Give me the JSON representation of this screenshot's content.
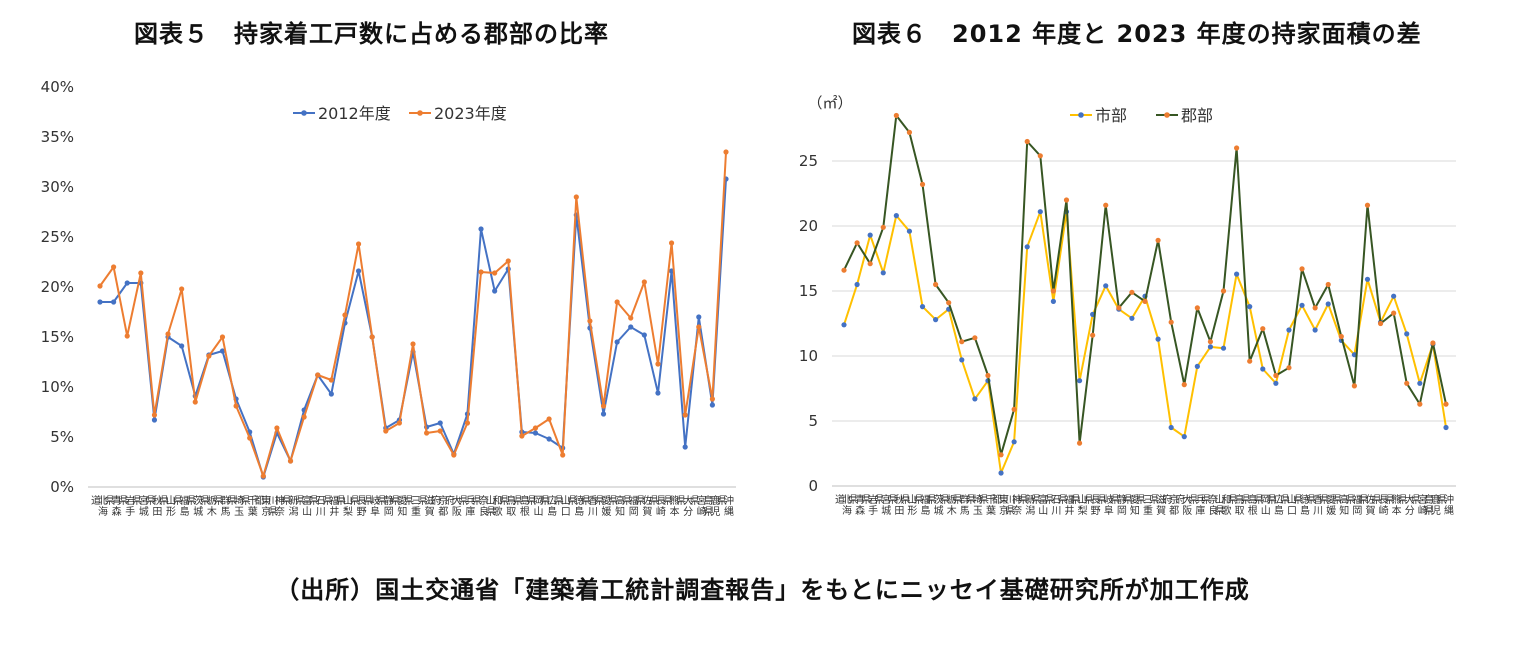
{
  "titles": {
    "left": "図表５　持家着工戸数に占める郡部の比率",
    "right": "図表６　2012 年度と 2023 年度の持家面積の差"
  },
  "source": "（出所）国土交通省「建築着工統計調査報告」をもとにニッセイ基礎研究所が加工作成",
  "chart_data": [
    {
      "type": "line",
      "title": "図表５　持家着工戸数に占める郡部の比率",
      "ylim": [
        0,
        40
      ],
      "yticks": [
        "0%",
        "5%",
        "10%",
        "15%",
        "20%",
        "25%",
        "30%",
        "35%",
        "40%"
      ],
      "grid": false,
      "legend": "top-center",
      "categories": [
        "北海道",
        "青森県",
        "岩手県",
        "宮城県",
        "秋田県",
        "山形県",
        "福島県",
        "茨城県",
        "栃木県",
        "群馬県",
        "埼玉県",
        "千葉県",
        "東京都",
        "神奈川県",
        "新潟県",
        "富山県",
        "石川県",
        "福井県",
        "山梨県",
        "長野県",
        "岐阜県",
        "静岡県",
        "愛知県",
        "三重県",
        "滋賀県",
        "京都府",
        "大阪府",
        "兵庫県",
        "奈良県",
        "和歌山県",
        "鳥取県",
        "島根県",
        "岡山県",
        "広島県",
        "山口県",
        "徳島県",
        "香川県",
        "愛媛県",
        "高知県",
        "福岡県",
        "佐賀県",
        "長崎県",
        "熊本県",
        "大分県",
        "宮崎県",
        "鹿児島県",
        "沖縄県"
      ],
      "series": [
        {
          "name": "2012年度",
          "color": "#4472C4",
          "values": [
            18.5,
            18.5,
            20.4,
            20.4,
            6.7,
            15.0,
            14.1,
            9.1,
            13.2,
            13.6,
            8.8,
            5.5,
            1.0,
            5.4,
            2.6,
            7.7,
            11.2,
            9.3,
            16.4,
            21.6,
            15.0,
            5.9,
            6.7,
            13.5,
            6.0,
            6.4,
            3.3,
            7.3,
            25.8,
            19.6,
            21.8,
            5.5,
            5.4,
            4.8,
            3.9,
            27.2,
            15.9,
            7.3,
            14.5,
            16.0,
            15.2,
            9.4,
            21.6,
            4.0,
            17.0,
            8.2,
            30.8
          ]
        },
        {
          "name": "2023年度",
          "color": "#ED7D31",
          "values": [
            20.1,
            22.0,
            15.1,
            21.4,
            7.2,
            15.3,
            19.8,
            8.5,
            13.1,
            15.0,
            8.1,
            4.9,
            1.1,
            5.9,
            2.6,
            7.0,
            11.2,
            10.7,
            17.2,
            24.3,
            15.0,
            5.6,
            6.4,
            14.3,
            5.4,
            5.6,
            3.2,
            6.4,
            21.5,
            21.4,
            22.6,
            5.1,
            5.9,
            6.8,
            3.2,
            29.0,
            16.6,
            8.1,
            18.5,
            16.9,
            20.5,
            12.3,
            24.4,
            7.2,
            16.0,
            8.8,
            33.5
          ]
        }
      ]
    },
    {
      "type": "line",
      "title": "図表６　2012 年度と 2023 年度の持家面積の差",
      "ylabel": "（㎡）",
      "ylim": [
        0,
        30
      ],
      "yticks": [
        "0",
        "5",
        "10",
        "15",
        "20",
        "25"
      ],
      "grid": true,
      "legend": "top-left",
      "categories": [
        "北海道",
        "青森県",
        "岩手県",
        "宮城県",
        "秋田県",
        "山形県",
        "福島県",
        "茨城県",
        "栃木県",
        "群馬県",
        "埼玉県",
        "千葉県",
        "東京都",
        "神奈川県",
        "新潟県",
        "富山県",
        "石川県",
        "福井県",
        "山梨県",
        "長野県",
        "岐阜県",
        "静岡県",
        "愛知県",
        "三重県",
        "滋賀県",
        "京都府",
        "大阪府",
        "兵庫県",
        "奈良県",
        "和歌山県",
        "鳥取県",
        "島根県",
        "岡山県",
        "広島県",
        "山口県",
        "徳島県",
        "香川県",
        "愛媛県",
        "高知県",
        "福岡県",
        "佐賀県",
        "長崎県",
        "熊本県",
        "大分県",
        "宮崎県",
        "鹿児島県",
        "沖縄県"
      ],
      "series": [
        {
          "name": "市部",
          "color": "#FFC000",
          "marker": "#4472C4",
          "values": [
            12.4,
            15.5,
            19.3,
            16.4,
            20.8,
            19.6,
            13.8,
            12.8,
            13.6,
            9.7,
            6.7,
            8.1,
            1.0,
            3.4,
            18.4,
            21.1,
            14.2,
            21.1,
            8.1,
            13.2,
            15.4,
            13.6,
            12.9,
            14.6,
            11.3,
            4.5,
            3.8,
            9.2,
            10.7,
            10.6,
            16.3,
            13.8,
            9.0,
            7.9,
            12.0,
            13.9,
            12.0,
            14.0,
            11.2,
            10.1,
            15.9,
            12.6,
            14.6,
            11.7,
            7.9,
            10.9,
            4.5
          ]
        },
        {
          "name": "郡部",
          "color": "#375623",
          "marker": "#ED7D31",
          "values": [
            16.6,
            18.7,
            17.1,
            19.9,
            28.5,
            27.2,
            23.2,
            15.5,
            14.1,
            11.1,
            11.4,
            8.5,
            2.4,
            5.9,
            26.5,
            25.4,
            15.0,
            22.0,
            3.3,
            11.6,
            21.6,
            13.7,
            14.9,
            14.2,
            18.9,
            12.6,
            7.8,
            13.7,
            11.1,
            15.0,
            26.0,
            9.6,
            12.1,
            8.5,
            9.1,
            16.7,
            13.7,
            15.5,
            11.5,
            7.7,
            21.6,
            12.5,
            13.3,
            7.9,
            6.3,
            11.0,
            6.3
          ]
        }
      ]
    }
  ]
}
